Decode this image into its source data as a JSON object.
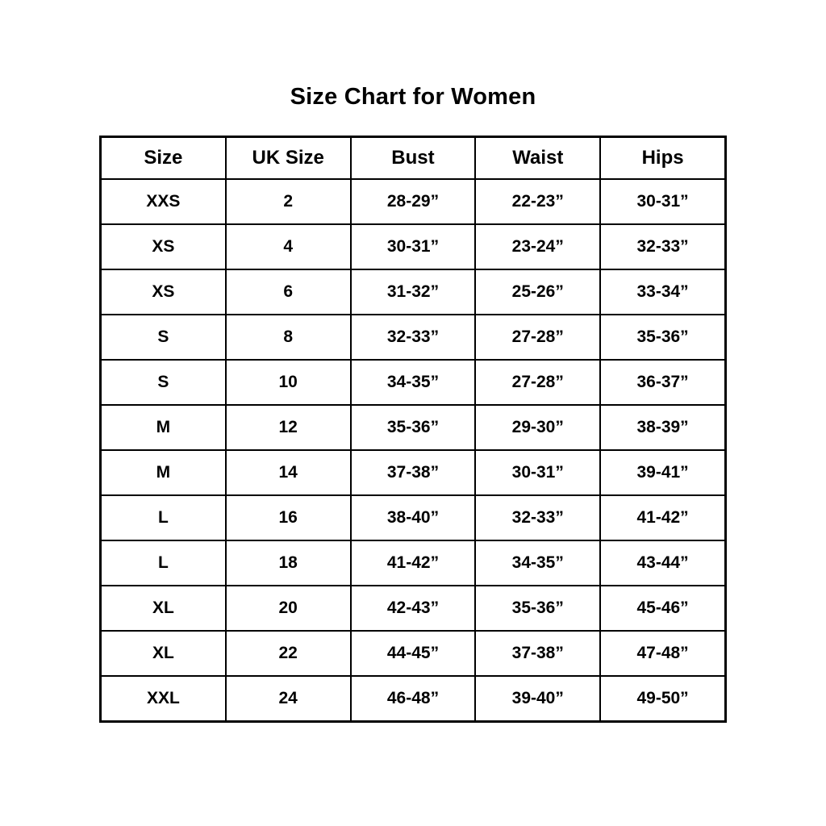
{
  "page": {
    "title": "Size Chart for Women"
  },
  "chart_data": {
    "type": "table",
    "title": "Size Chart for Women",
    "columns": [
      "Size",
      "UK Size",
      "Bust",
      "Waist",
      "Hips"
    ],
    "rows": [
      [
        "XXS",
        "2",
        "28-29”",
        "22-23”",
        "30-31”"
      ],
      [
        "XS",
        "4",
        "30-31”",
        "23-24”",
        "32-33”"
      ],
      [
        "XS",
        "6",
        "31-32”",
        "25-26”",
        "33-34”"
      ],
      [
        "S",
        "8",
        "32-33”",
        "27-28”",
        "35-36”"
      ],
      [
        "S",
        "10",
        "34-35”",
        "27-28”",
        "36-37”"
      ],
      [
        "M",
        "12",
        "35-36”",
        "29-30”",
        "38-39”"
      ],
      [
        "M",
        "14",
        "37-38”",
        "30-31”",
        "39-41”"
      ],
      [
        "L",
        "16",
        "38-40”",
        "32-33”",
        "41-42”"
      ],
      [
        "L",
        "18",
        "41-42”",
        "34-35”",
        "43-44”"
      ],
      [
        "XL",
        "20",
        "42-43”",
        "35-36”",
        "45-46”"
      ],
      [
        "XL",
        "22",
        "44-45”",
        "37-38”",
        "47-48”"
      ],
      [
        "XXL",
        "24",
        "46-48”",
        "39-40”",
        "49-50”"
      ]
    ],
    "layout": {
      "grid": true,
      "text_color": "#000000",
      "border_color": "#000000",
      "background_color": "#ffffff"
    }
  }
}
